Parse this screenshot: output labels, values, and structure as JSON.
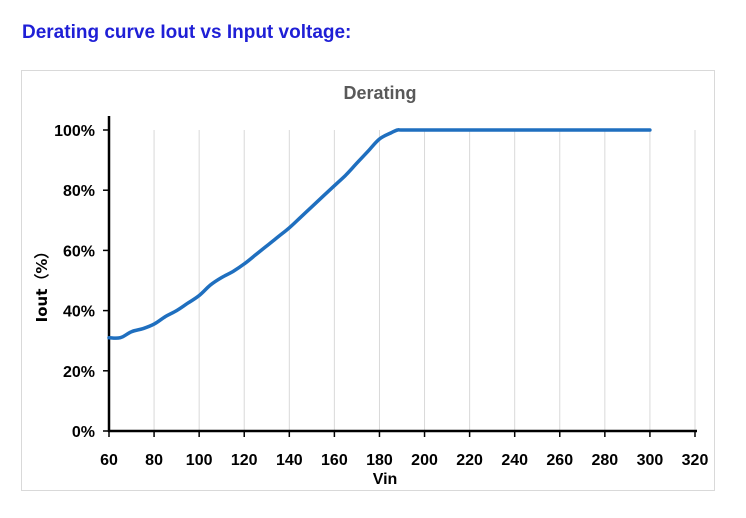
{
  "heading": "Derating curve Iout vs Input voltage:",
  "chart_data": {
    "type": "line",
    "title": "Derating",
    "xlabel": "Vin",
    "ylabel": "Iout（%）",
    "xlim": [
      60,
      320
    ],
    "ylim": [
      0,
      100
    ],
    "x_ticks": [
      60,
      80,
      100,
      120,
      140,
      160,
      180,
      200,
      220,
      240,
      260,
      280,
      300,
      320
    ],
    "x_tick_labels": [
      "60",
      "80",
      "100",
      "120",
      "140",
      "160",
      "180",
      "200",
      "220",
      "240",
      "260",
      "280",
      "300",
      "320"
    ],
    "y_ticks": [
      0,
      20,
      40,
      60,
      80,
      100
    ],
    "y_tick_labels": [
      "0%",
      "20%",
      "40%",
      "60%",
      "80%",
      "100%"
    ],
    "grid": "vertical",
    "legend": "none",
    "series": [
      {
        "color": "#1f6fbf",
        "x": [
          60,
          65,
          70,
          75,
          80,
          85,
          90,
          95,
          100,
          105,
          110,
          115,
          120,
          125,
          130,
          135,
          140,
          145,
          150,
          155,
          160,
          165,
          170,
          175,
          180,
          185,
          188,
          190,
          200,
          220,
          240,
          260,
          280,
          300
        ],
        "y": [
          31,
          31,
          33,
          34,
          35.5,
          38,
          40,
          42.5,
          45,
          48.5,
          51,
          53,
          55.5,
          58.5,
          61.5,
          64.5,
          67.5,
          71,
          74.5,
          78,
          81.5,
          85,
          89,
          93,
          97,
          99,
          100,
          100,
          100,
          100,
          100,
          100,
          100,
          100
        ]
      }
    ]
  }
}
